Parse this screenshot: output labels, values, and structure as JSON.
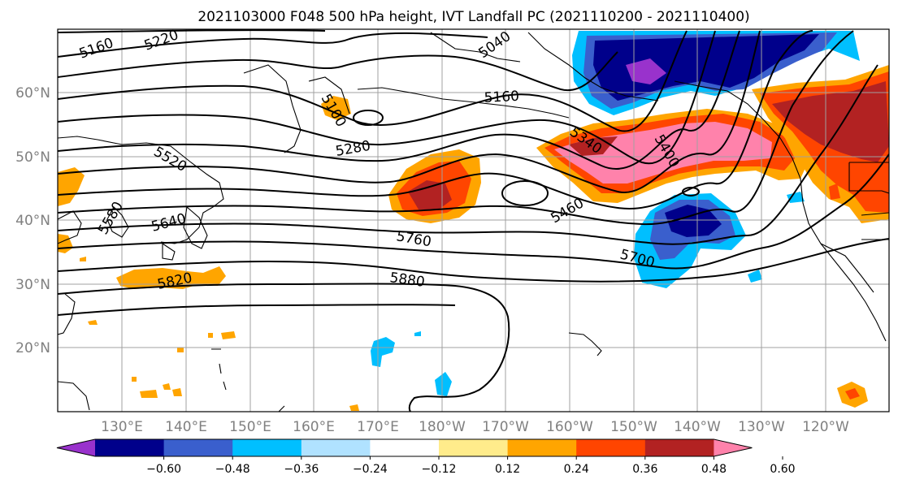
{
  "title": "2021103000 F048 500 hPa height, IVT Landfall PC (2021110200 - 2021110400)",
  "map": {
    "lat_labels": [
      "60°N",
      "50°N",
      "40°N",
      "30°N",
      "20°N"
    ],
    "lon_labels": [
      "130°E",
      "140°E",
      "150°E",
      "160°E",
      "170°E",
      "180°W",
      "170°W",
      "160°W",
      "150°W",
      "140°W",
      "130°W",
      "120°W"
    ],
    "height_contour_labels": [
      "5160",
      "5220",
      "5040",
      "5160",
      "5100",
      "5280",
      "5340",
      "5400",
      "5520",
      "5460",
      "5580",
      "5640",
      "5760",
      "5700",
      "5820",
      "5880"
    ]
  },
  "colorbar": {
    "tick_labels": [
      "−0.60",
      "−0.48",
      "−0.36",
      "−0.24",
      "−0.12",
      "0.12",
      "0.24",
      "0.36",
      "0.48",
      "0.60"
    ],
    "colors": [
      "#9932cc",
      "#00008b",
      "#3a5fcd",
      "#00bfff",
      "#b0e2ff",
      "#ffffff",
      "#ffec8b",
      "#ffa500",
      "#ff4500",
      "#b22222",
      "#ff82ab"
    ]
  }
}
